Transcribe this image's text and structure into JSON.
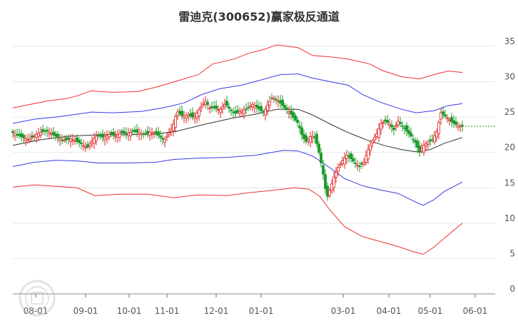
{
  "chart_data": {
    "type": "line",
    "title": "雷迪克(300652)赢家极反通道",
    "y_ticks": [
      "0",
      "5",
      "10",
      "15",
      "20",
      "25",
      "30",
      "35"
    ],
    "ylim": [
      0,
      36
    ],
    "x_ticks": [
      "08-01",
      "09-01",
      "10-01",
      "11-01",
      "12-01",
      "01-01",
      "03-01",
      "04-01",
      "05-01",
      "06-01"
    ],
    "grid": true,
    "last_price": 23.7,
    "colors": {
      "outer": "#f03030",
      "inner": "#3a3ae8",
      "mid": "#333333",
      "up": "#e02020",
      "down": "#1a9a2a",
      "ref": "#1a9a2a",
      "grid": "#e6e6e6"
    },
    "series": [
      {
        "role": "outer-upper",
        "points": [
          [
            0,
            26.3
          ],
          [
            25,
            26.8
          ],
          [
            50,
            27.3
          ],
          [
            75,
            27.6
          ],
          [
            90,
            28.0
          ],
          [
            110,
            28.7
          ],
          [
            140,
            28.5
          ],
          [
            175,
            28.6
          ],
          [
            200,
            29.2
          ],
          [
            230,
            30.1
          ],
          [
            260,
            31.0
          ],
          [
            280,
            32.5
          ],
          [
            310,
            33.2
          ],
          [
            330,
            34.0
          ],
          [
            350,
            34.5
          ],
          [
            370,
            35.2
          ],
          [
            400,
            34.8
          ],
          [
            420,
            33.7
          ],
          [
            445,
            33.5
          ],
          [
            470,
            33.2
          ],
          [
            500,
            32.5
          ],
          [
            520,
            31.5
          ],
          [
            545,
            30.7
          ],
          [
            570,
            30.4
          ],
          [
            590,
            31.0
          ],
          [
            610,
            31.5
          ],
          [
            630,
            31.3
          ]
        ]
      },
      {
        "role": "inner-upper",
        "points": [
          [
            0,
            24.1
          ],
          [
            30,
            24.7
          ],
          [
            60,
            25.0
          ],
          [
            90,
            25.4
          ],
          [
            110,
            25.7
          ],
          [
            140,
            25.6
          ],
          [
            180,
            25.8
          ],
          [
            210,
            26.3
          ],
          [
            240,
            27.0
          ],
          [
            265,
            28.2
          ],
          [
            290,
            29.0
          ],
          [
            320,
            29.5
          ],
          [
            350,
            30.3
          ],
          [
            375,
            31.0
          ],
          [
            400,
            31.1
          ],
          [
            420,
            30.5
          ],
          [
            445,
            30.0
          ],
          [
            470,
            29.5
          ],
          [
            490,
            28.2
          ],
          [
            515,
            27.1
          ],
          [
            545,
            26.1
          ],
          [
            565,
            25.6
          ],
          [
            590,
            25.9
          ],
          [
            610,
            26.6
          ],
          [
            630,
            26.9
          ]
        ]
      },
      {
        "role": "middle",
        "points": [
          [
            0,
            21.0
          ],
          [
            40,
            21.8
          ],
          [
            80,
            22.3
          ],
          [
            120,
            22.5
          ],
          [
            160,
            22.5
          ],
          [
            200,
            22.6
          ],
          [
            230,
            23.0
          ],
          [
            270,
            24.0
          ],
          [
            310,
            24.9
          ],
          [
            340,
            25.4
          ],
          [
            370,
            26.1
          ],
          [
            400,
            26.1
          ],
          [
            420,
            25.3
          ],
          [
            445,
            24.0
          ],
          [
            470,
            22.8
          ],
          [
            495,
            21.8
          ],
          [
            520,
            21.0
          ],
          [
            545,
            20.4
          ],
          [
            565,
            20.1
          ],
          [
            585,
            20.4
          ],
          [
            605,
            21.3
          ],
          [
            630,
            22.1
          ]
        ]
      },
      {
        "role": "inner-lower",
        "points": [
          [
            0,
            18.0
          ],
          [
            30,
            18.6
          ],
          [
            60,
            18.9
          ],
          [
            90,
            18.8
          ],
          [
            120,
            18.5
          ],
          [
            160,
            18.5
          ],
          [
            200,
            18.6
          ],
          [
            225,
            19.0
          ],
          [
            260,
            19.2
          ],
          [
            300,
            19.3
          ],
          [
            340,
            19.6
          ],
          [
            380,
            20.3
          ],
          [
            400,
            20.2
          ],
          [
            420,
            19.5
          ],
          [
            445,
            17.8
          ],
          [
            465,
            16.3
          ],
          [
            490,
            15.3
          ],
          [
            515,
            14.7
          ],
          [
            540,
            14.2
          ],
          [
            560,
            13.2
          ],
          [
            575,
            12.5
          ],
          [
            590,
            13.3
          ],
          [
            605,
            14.5
          ],
          [
            630,
            15.8
          ]
        ]
      },
      {
        "role": "outer-lower",
        "points": [
          [
            0,
            15.1
          ],
          [
            30,
            15.4
          ],
          [
            60,
            15.2
          ],
          [
            90,
            15.0
          ],
          [
            115,
            13.9
          ],
          [
            150,
            14.1
          ],
          [
            190,
            14.1
          ],
          [
            225,
            13.6
          ],
          [
            260,
            14.0
          ],
          [
            300,
            13.9
          ],
          [
            330,
            14.3
          ],
          [
            360,
            14.6
          ],
          [
            395,
            15.0
          ],
          [
            415,
            14.8
          ],
          [
            430,
            13.8
          ],
          [
            445,
            11.8
          ],
          [
            465,
            9.5
          ],
          [
            490,
            8.1
          ],
          [
            515,
            7.4
          ],
          [
            540,
            6.7
          ],
          [
            560,
            6.0
          ],
          [
            575,
            5.6
          ],
          [
            590,
            6.6
          ],
          [
            605,
            7.9
          ],
          [
            630,
            10.0
          ]
        ]
      }
    ],
    "candles": [
      [
        0,
        22.8
      ],
      [
        12,
        22.2
      ],
      [
        22,
        21.8
      ],
      [
        36,
        22.7
      ],
      [
        46,
        23.1
      ],
      [
        58,
        22.4
      ],
      [
        70,
        21.7
      ],
      [
        82,
        21.9
      ],
      [
        95,
        21.3
      ],
      [
        104,
        20.6
      ],
      [
        110,
        21.5
      ],
      [
        118,
        22.4
      ],
      [
        128,
        22.1
      ],
      [
        136,
        22.6
      ],
      [
        144,
        22.3
      ],
      [
        152,
        22.8
      ],
      [
        160,
        22.6
      ],
      [
        168,
        23.0
      ],
      [
        176,
        22.8
      ],
      [
        184,
        22.5
      ],
      [
        194,
        22.9
      ],
      [
        204,
        22.4
      ],
      [
        212,
        21.7
      ],
      [
        218,
        22.6
      ],
      [
        224,
        23.6
      ],
      [
        230,
        25.8
      ],
      [
        238,
        25.1
      ],
      [
        246,
        25.3
      ],
      [
        254,
        24.9
      ],
      [
        262,
        26.2
      ],
      [
        270,
        27.2
      ],
      [
        276,
        26.3
      ],
      [
        282,
        26.3
      ],
      [
        290,
        26.0
      ],
      [
        298,
        26.9
      ],
      [
        304,
        26.1
      ],
      [
        312,
        25.5
      ],
      [
        320,
        25.9
      ],
      [
        328,
        26.1
      ],
      [
        336,
        26.8
      ],
      [
        344,
        26.2
      ],
      [
        352,
        25.6
      ],
      [
        358,
        26.9
      ],
      [
        364,
        27.8
      ],
      [
        372,
        27.3
      ],
      [
        380,
        26.4
      ],
      [
        388,
        25.7
      ],
      [
        394,
        24.8
      ],
      [
        400,
        24.1
      ],
      [
        406,
        22.2
      ],
      [
        412,
        21.4
      ],
      [
        418,
        22.4
      ],
      [
        424,
        22.0
      ],
      [
        430,
        19.6
      ],
      [
        435,
        16.9
      ],
      [
        440,
        13.5
      ],
      [
        445,
        14.9
      ],
      [
        450,
        16.5
      ],
      [
        456,
        17.9
      ],
      [
        462,
        18.8
      ],
      [
        468,
        19.6
      ],
      [
        474,
        19.1
      ],
      [
        480,
        18.4
      ],
      [
        486,
        18.0
      ],
      [
        492,
        18.6
      ],
      [
        498,
        20.4
      ],
      [
        504,
        21.6
      ],
      [
        510,
        22.6
      ],
      [
        516,
        24.1
      ],
      [
        522,
        24.4
      ],
      [
        528,
        24.0
      ],
      [
        534,
        23.2
      ],
      [
        540,
        24.4
      ],
      [
        546,
        23.7
      ],
      [
        552,
        23.0
      ],
      [
        558,
        22.3
      ],
      [
        564,
        21.4
      ],
      [
        570,
        20.0
      ],
      [
        576,
        21.0
      ],
      [
        582,
        21.4
      ],
      [
        588,
        21.8
      ],
      [
        594,
        22.9
      ],
      [
        600,
        25.6
      ],
      [
        606,
        25.1
      ],
      [
        612,
        24.6
      ],
      [
        618,
        24.1
      ],
      [
        624,
        23.8
      ],
      [
        630,
        23.7
      ]
    ]
  }
}
